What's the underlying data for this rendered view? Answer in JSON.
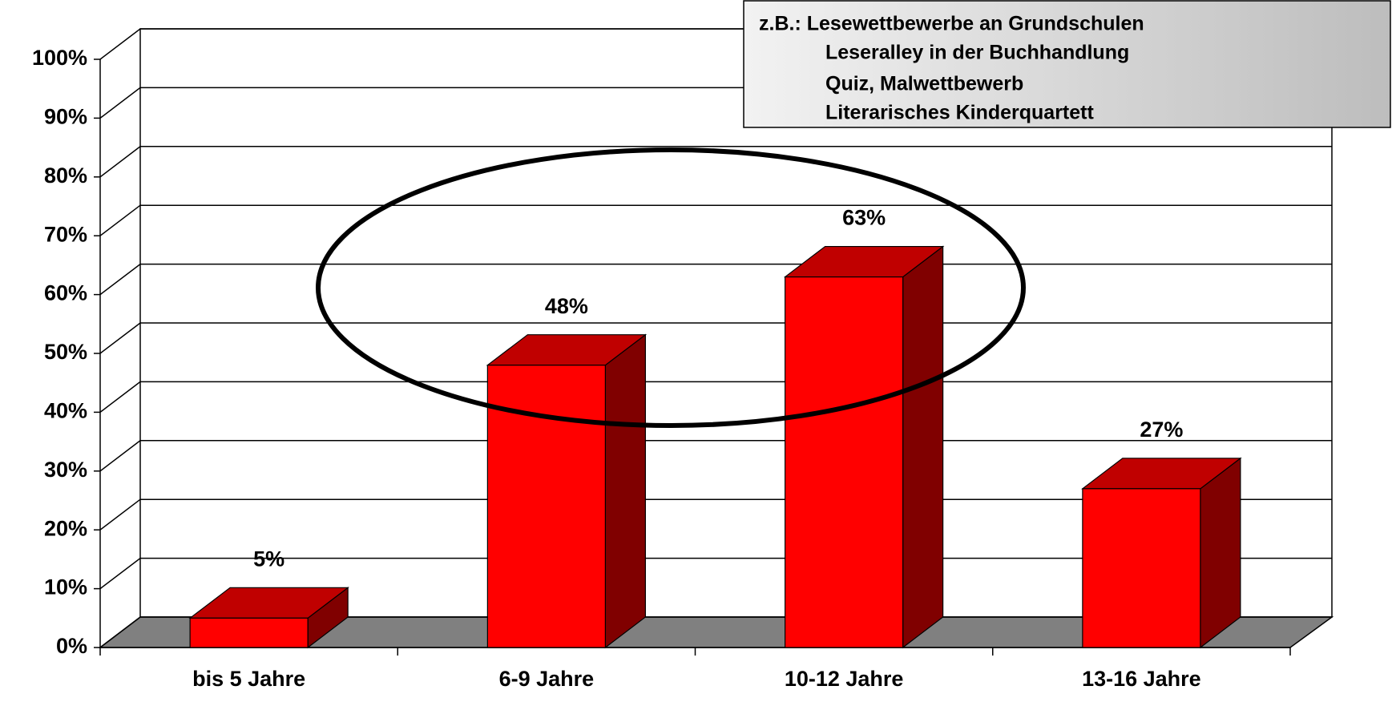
{
  "chart_data": {
    "type": "bar3d",
    "categories": [
      "bis 5 Jahre",
      "6-9 Jahre",
      "10-12 Jahre",
      "13-16 Jahre"
    ],
    "values": [
      5,
      48,
      63,
      27
    ],
    "value_labels": [
      "5%",
      "48%",
      "63%",
      "27%"
    ],
    "color": "#ff0000",
    "ylim": [
      0,
      100
    ],
    "yticks": [
      {
        "value": 0,
        "label": "0%"
      },
      {
        "value": 10,
        "label": "10%"
      },
      {
        "value": 20,
        "label": "20%"
      },
      {
        "value": 30,
        "label": "30%"
      },
      {
        "value": 40,
        "label": "40%"
      },
      {
        "value": 50,
        "label": "50%"
      },
      {
        "value": 60,
        "label": "60%"
      },
      {
        "value": 70,
        "label": "70%"
      },
      {
        "value": 80,
        "label": "80%"
      },
      {
        "value": 90,
        "label": "90%"
      },
      {
        "value": 100,
        "label": "100%"
      }
    ],
    "grid": true,
    "annotation": [
      "z.B.: Lesewettbewerbe an Grundschulen",
      "Leseralley in der Buchhandlung",
      "Quiz, Malwettbewerb",
      "Literarisches Kinderquartett"
    ]
  }
}
